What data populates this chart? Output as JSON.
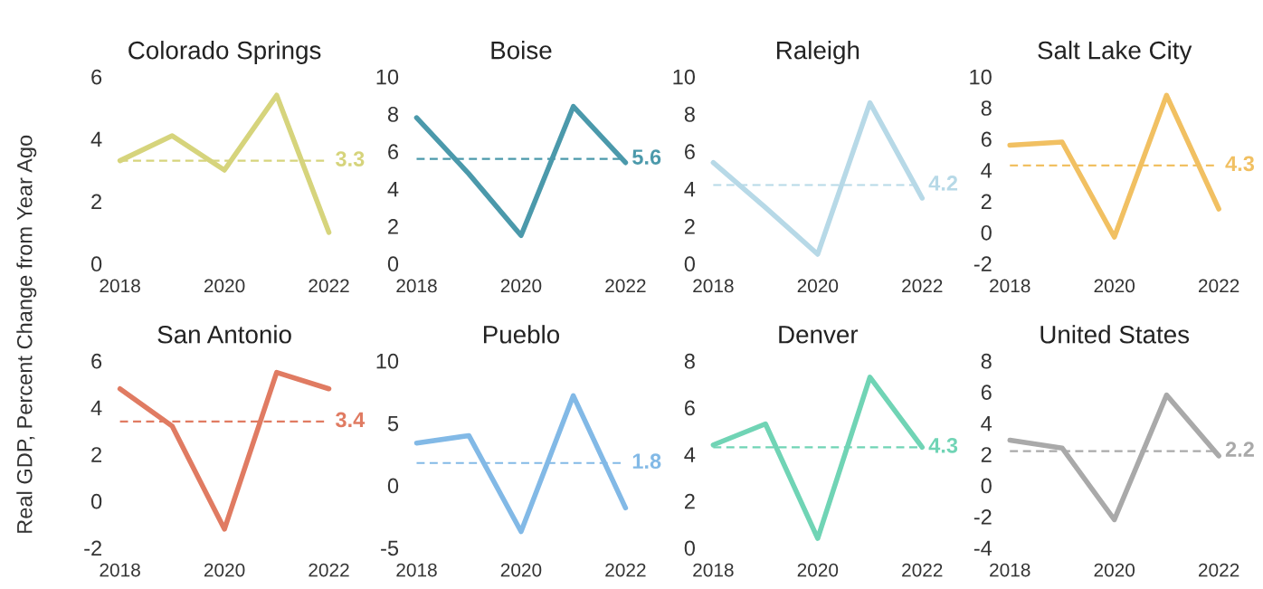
{
  "chart_data": [
    {
      "type": "line",
      "title": "Colorado Springs",
      "ylabel": "Real GDP, Percent Change from Year Ago",
      "x": [
        2018,
        2019,
        2020,
        2021,
        2022
      ],
      "series": [
        {
          "color": "#d6d47c",
          "values": [
            3.3,
            4.1,
            3.0,
            5.4,
            1.0
          ]
        }
      ],
      "xlim": [
        2018,
        2022
      ],
      "xticks": [
        2018,
        2020,
        2022
      ],
      "ylim": [
        0,
        6
      ],
      "yticks": [
        0,
        2,
        4,
        6
      ],
      "ref_lines": [
        {
          "axis": "y",
          "value": 3.3,
          "label": "3.3",
          "color": "#d6d47c",
          "line_style": "dashed"
        }
      ],
      "grid": false
    },
    {
      "type": "line",
      "title": "Boise",
      "x": [
        2018,
        2019,
        2020,
        2021,
        2022
      ],
      "series": [
        {
          "color": "#4b99ab",
          "values": [
            7.8,
            4.8,
            1.5,
            8.4,
            5.4
          ]
        }
      ],
      "xlim": [
        2018,
        2022
      ],
      "xticks": [
        2018,
        2020,
        2022
      ],
      "ylim": [
        0,
        10
      ],
      "yticks": [
        0,
        2,
        4,
        6,
        8,
        10
      ],
      "ref_lines": [
        {
          "axis": "y",
          "value": 5.6,
          "label": "5.6",
          "color": "#4b99ab",
          "line_style": "dashed"
        }
      ],
      "grid": false
    },
    {
      "type": "line",
      "title": "Raleigh",
      "x": [
        2018,
        2019,
        2020,
        2021,
        2022
      ],
      "series": [
        {
          "color": "#b7d9e7",
          "values": [
            5.4,
            3.0,
            0.5,
            8.6,
            3.5
          ]
        }
      ],
      "xlim": [
        2018,
        2022
      ],
      "xticks": [
        2018,
        2020,
        2022
      ],
      "ylim": [
        0,
        10
      ],
      "yticks": [
        0,
        2,
        4,
        6,
        8,
        10
      ],
      "ref_lines": [
        {
          "axis": "y",
          "value": 4.2,
          "label": "4.2",
          "color": "#b7d9e7",
          "line_style": "dashed"
        }
      ],
      "grid": false
    },
    {
      "type": "line",
      "title": "Salt Lake City",
      "x": [
        2018,
        2019,
        2020,
        2021,
        2022
      ],
      "series": [
        {
          "color": "#f1c062",
          "values": [
            5.6,
            5.8,
            -0.3,
            8.8,
            1.5
          ]
        }
      ],
      "xlim": [
        2018,
        2022
      ],
      "xticks": [
        2018,
        2020,
        2022
      ],
      "ylim": [
        -2,
        10
      ],
      "yticks": [
        -2,
        0,
        2,
        4,
        6,
        8,
        10
      ],
      "ref_lines": [
        {
          "axis": "y",
          "value": 4.3,
          "label": "4.3",
          "color": "#f1c062",
          "line_style": "dashed"
        }
      ],
      "grid": false
    },
    {
      "type": "line",
      "title": "San Antonio",
      "x": [
        2018,
        2019,
        2020,
        2021,
        2022
      ],
      "series": [
        {
          "color": "#e07b62",
          "values": [
            4.8,
            3.2,
            -1.2,
            5.5,
            4.8
          ]
        }
      ],
      "xlim": [
        2018,
        2022
      ],
      "xticks": [
        2018,
        2020,
        2022
      ],
      "ylim": [
        -2,
        6
      ],
      "yticks": [
        -2,
        0,
        2,
        4,
        6
      ],
      "ref_lines": [
        {
          "axis": "y",
          "value": 3.4,
          "label": "3.4",
          "color": "#e07b62",
          "line_style": "dashed"
        }
      ],
      "grid": false
    },
    {
      "type": "line",
      "title": "Pueblo",
      "x": [
        2018,
        2019,
        2020,
        2021,
        2022
      ],
      "series": [
        {
          "color": "#82b9e6",
          "values": [
            3.4,
            4.0,
            -3.7,
            7.2,
            -1.8
          ]
        }
      ],
      "xlim": [
        2018,
        2022
      ],
      "xticks": [
        2018,
        2020,
        2022
      ],
      "ylim": [
        -5,
        10
      ],
      "yticks": [
        -5,
        0,
        5,
        10
      ],
      "ref_lines": [
        {
          "axis": "y",
          "value": 1.8,
          "label": "1.8",
          "color": "#82b9e6",
          "line_style": "dashed"
        }
      ],
      "grid": false
    },
    {
      "type": "line",
      "title": "Denver",
      "x": [
        2018,
        2019,
        2020,
        2021,
        2022
      ],
      "series": [
        {
          "color": "#70d4b5",
          "values": [
            4.4,
            5.3,
            0.4,
            7.3,
            4.3
          ]
        }
      ],
      "xlim": [
        2018,
        2022
      ],
      "xticks": [
        2018,
        2020,
        2022
      ],
      "ylim": [
        0,
        8
      ],
      "yticks": [
        0,
        2,
        4,
        6,
        8
      ],
      "ref_lines": [
        {
          "axis": "y",
          "value": 4.3,
          "label": "4.3",
          "color": "#70d4b5",
          "line_style": "dashed"
        }
      ],
      "grid": false
    },
    {
      "type": "line",
      "title": "United States",
      "x": [
        2018,
        2019,
        2020,
        2021,
        2022
      ],
      "series": [
        {
          "color": "#a9a9a9",
          "values": [
            2.9,
            2.4,
            -2.2,
            5.8,
            1.9
          ]
        }
      ],
      "xlim": [
        2018,
        2022
      ],
      "xticks": [
        2018,
        2020,
        2022
      ],
      "ylim": [
        -4,
        8
      ],
      "yticks": [
        -4,
        -2,
        0,
        2,
        4,
        6,
        8
      ],
      "ref_lines": [
        {
          "axis": "y",
          "value": 2.2,
          "label": "2.2",
          "color": "#a9a9a9",
          "line_style": "dashed"
        }
      ],
      "grid": false
    }
  ]
}
